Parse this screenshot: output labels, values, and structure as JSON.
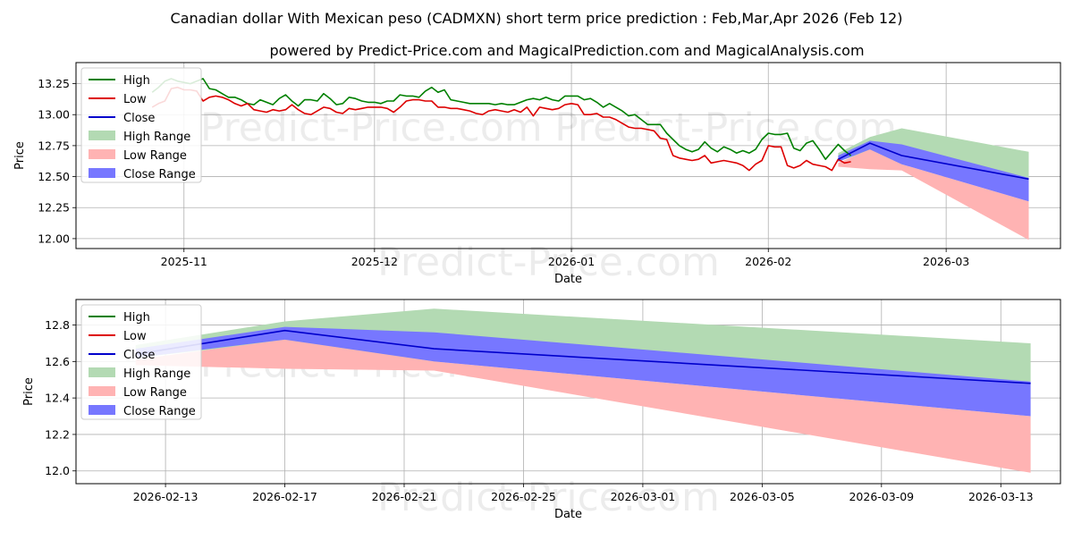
{
  "title": "Canadian dollar With Mexican peso (CADMXN) short term price prediction : Feb,Mar,Apr 2026 (Feb 12)",
  "subtitle": "powered by Predict-Price.com and MagicalPrediction.com and MagicalAnalysis.com",
  "watermark": "Predict-Price.com",
  "colors": {
    "high": "#008000",
    "low": "#dd0000",
    "close": "#0000cc",
    "high_range": "#b3dab3",
    "low_range": "#ffb3b3",
    "close_range": "#7777ff"
  },
  "legend": [
    "High",
    "Low",
    "Close",
    "High Range",
    "Low Range",
    "Close Range"
  ],
  "chart_data": [
    {
      "type": "line",
      "panel": "overview",
      "xlabel": "Date",
      "ylabel": "Price",
      "xlim": [
        "2025-10-15",
        "2026-03-19"
      ],
      "ylim": [
        11.92,
        13.42
      ],
      "xticks": [
        "2025-11-01",
        "2025-12-01",
        "2026-01-01",
        "2026-02-01",
        "2026-03-01"
      ],
      "xtick_labels": [
        "2025-11",
        "2025-12",
        "2026-01",
        "2026-02",
        "2026-03"
      ],
      "yticks": [
        12.0,
        12.25,
        12.5,
        12.75,
        13.0,
        13.25
      ],
      "ytick_labels": [
        "12.00",
        "12.25",
        "12.50",
        "12.75",
        "13.00",
        "13.25"
      ],
      "history_high": [
        [
          "2025-10-27",
          13.18
        ],
        [
          "2025-10-28",
          13.22
        ],
        [
          "2025-10-29",
          13.27
        ],
        [
          "2025-10-30",
          13.29
        ],
        [
          "2025-10-31",
          13.27
        ],
        [
          "2025-11-02",
          13.25
        ],
        [
          "2025-11-03",
          13.27
        ],
        [
          "2025-11-04",
          13.29
        ],
        [
          "2025-11-05",
          13.21
        ],
        [
          "2025-11-06",
          13.2
        ],
        [
          "2025-11-07",
          13.17
        ],
        [
          "2025-11-08",
          13.14
        ],
        [
          "2025-11-09",
          13.14
        ],
        [
          "2025-11-10",
          13.12
        ],
        [
          "2025-11-11",
          13.09
        ],
        [
          "2025-11-12",
          13.08
        ],
        [
          "2025-11-13",
          13.12
        ],
        [
          "2025-11-14",
          13.1
        ],
        [
          "2025-11-15",
          13.08
        ],
        [
          "2025-11-16",
          13.13
        ],
        [
          "2025-11-17",
          13.16
        ],
        [
          "2025-11-18",
          13.11
        ],
        [
          "2025-11-19",
          13.07
        ],
        [
          "2025-11-20",
          13.12
        ],
        [
          "2025-11-21",
          13.12
        ],
        [
          "2025-11-22",
          13.11
        ],
        [
          "2025-11-23",
          13.17
        ],
        [
          "2025-11-24",
          13.13
        ],
        [
          "2025-11-25",
          13.08
        ],
        [
          "2025-11-26",
          13.09
        ],
        [
          "2025-11-27",
          13.14
        ],
        [
          "2025-11-28",
          13.13
        ],
        [
          "2025-11-29",
          13.11
        ],
        [
          "2025-11-30",
          13.1
        ],
        [
          "2025-12-01",
          13.1
        ],
        [
          "2025-12-02",
          13.09
        ],
        [
          "2025-12-03",
          13.11
        ],
        [
          "2025-12-04",
          13.11
        ],
        [
          "2025-12-05",
          13.16
        ],
        [
          "2025-12-06",
          13.15
        ],
        [
          "2025-12-07",
          13.15
        ],
        [
          "2025-12-08",
          13.14
        ],
        [
          "2025-12-09",
          13.19
        ],
        [
          "2025-12-10",
          13.22
        ],
        [
          "2025-12-11",
          13.18
        ],
        [
          "2025-12-12",
          13.2
        ],
        [
          "2025-12-13",
          13.12
        ],
        [
          "2025-12-14",
          13.11
        ],
        [
          "2025-12-15",
          13.1
        ],
        [
          "2025-12-16",
          13.09
        ],
        [
          "2025-12-17",
          13.09
        ],
        [
          "2025-12-18",
          13.09
        ],
        [
          "2025-12-19",
          13.09
        ],
        [
          "2025-12-20",
          13.08
        ],
        [
          "2025-12-21",
          13.09
        ],
        [
          "2025-12-22",
          13.08
        ],
        [
          "2025-12-23",
          13.08
        ],
        [
          "2025-12-24",
          13.1
        ],
        [
          "2025-12-25",
          13.12
        ],
        [
          "2025-12-26",
          13.13
        ],
        [
          "2025-12-27",
          13.12
        ],
        [
          "2025-12-28",
          13.14
        ],
        [
          "2025-12-29",
          13.12
        ],
        [
          "2025-12-30",
          13.11
        ],
        [
          "2025-12-31",
          13.15
        ],
        [
          "2026-01-01",
          13.15
        ],
        [
          "2026-01-02",
          13.15
        ],
        [
          "2026-01-03",
          13.12
        ],
        [
          "2026-01-04",
          13.13
        ],
        [
          "2026-01-05",
          13.1
        ],
        [
          "2026-01-06",
          13.06
        ],
        [
          "2026-01-07",
          13.09
        ],
        [
          "2026-01-08",
          13.06
        ],
        [
          "2026-01-09",
          13.03
        ],
        [
          "2026-01-10",
          12.99
        ],
        [
          "2026-01-11",
          13.0
        ],
        [
          "2026-01-12",
          12.96
        ],
        [
          "2026-01-13",
          12.92
        ],
        [
          "2026-01-14",
          12.92
        ],
        [
          "2026-01-15",
          12.92
        ],
        [
          "2026-01-16",
          12.85
        ],
        [
          "2026-01-17",
          12.8
        ],
        [
          "2026-01-18",
          12.75
        ],
        [
          "2026-01-19",
          12.72
        ],
        [
          "2026-01-20",
          12.7
        ],
        [
          "2026-01-21",
          12.72
        ],
        [
          "2026-01-22",
          12.78
        ],
        [
          "2026-01-23",
          12.73
        ],
        [
          "2026-01-24",
          12.7
        ],
        [
          "2026-01-25",
          12.74
        ],
        [
          "2026-01-26",
          12.72
        ],
        [
          "2026-01-27",
          12.69
        ],
        [
          "2026-01-28",
          12.71
        ],
        [
          "2026-01-29",
          12.69
        ],
        [
          "2026-01-30",
          12.72
        ],
        [
          "2026-01-31",
          12.8
        ],
        [
          "2026-02-01",
          12.85
        ],
        [
          "2026-02-02",
          12.84
        ],
        [
          "2026-02-03",
          12.84
        ],
        [
          "2026-02-04",
          12.85
        ],
        [
          "2026-02-05",
          12.73
        ],
        [
          "2026-02-06",
          12.71
        ],
        [
          "2026-02-07",
          12.77
        ],
        [
          "2026-02-08",
          12.79
        ],
        [
          "2026-02-09",
          12.72
        ],
        [
          "2026-02-10",
          12.64
        ],
        [
          "2026-02-11",
          12.7
        ],
        [
          "2026-02-12",
          12.76
        ],
        [
          "2026-02-13",
          12.71
        ],
        [
          "2026-02-14",
          12.67
        ]
      ],
      "history_low": [
        [
          "2025-10-27",
          13.06
        ],
        [
          "2025-10-28",
          13.09
        ],
        [
          "2025-10-29",
          13.11
        ],
        [
          "2025-10-30",
          13.21
        ],
        [
          "2025-10-31",
          13.22
        ],
        [
          "2025-11-01",
          13.2
        ],
        [
          "2025-11-02",
          13.2
        ],
        [
          "2025-11-03",
          13.19
        ],
        [
          "2025-11-04",
          13.11
        ],
        [
          "2025-11-05",
          13.14
        ],
        [
          "2025-11-06",
          13.15
        ],
        [
          "2025-11-07",
          13.14
        ],
        [
          "2025-11-08",
          13.12
        ],
        [
          "2025-11-09",
          13.09
        ],
        [
          "2025-11-10",
          13.07
        ],
        [
          "2025-11-11",
          13.09
        ],
        [
          "2025-11-12",
          13.04
        ],
        [
          "2025-11-13",
          13.03
        ],
        [
          "2025-11-14",
          13.02
        ],
        [
          "2025-11-15",
          13.04
        ],
        [
          "2025-11-16",
          13.03
        ],
        [
          "2025-11-17",
          13.04
        ],
        [
          "2025-11-18",
          13.08
        ],
        [
          "2025-11-19",
          13.04
        ],
        [
          "2025-11-20",
          13.01
        ],
        [
          "2025-11-21",
          13.0
        ],
        [
          "2025-11-22",
          13.03
        ],
        [
          "2025-11-23",
          13.06
        ],
        [
          "2025-11-24",
          13.05
        ],
        [
          "2025-11-25",
          13.02
        ],
        [
          "2025-11-26",
          13.01
        ],
        [
          "2025-11-27",
          13.05
        ],
        [
          "2025-11-28",
          13.04
        ],
        [
          "2025-11-29",
          13.05
        ],
        [
          "2025-11-30",
          13.06
        ],
        [
          "2025-12-01",
          13.06
        ],
        [
          "2025-12-02",
          13.06
        ],
        [
          "2025-12-03",
          13.05
        ],
        [
          "2025-12-04",
          13.02
        ],
        [
          "2025-12-05",
          13.06
        ],
        [
          "2025-12-06",
          13.11
        ],
        [
          "2025-12-07",
          13.12
        ],
        [
          "2025-12-08",
          13.12
        ],
        [
          "2025-12-09",
          13.11
        ],
        [
          "2025-12-10",
          13.11
        ],
        [
          "2025-12-11",
          13.06
        ],
        [
          "2025-12-12",
          13.06
        ],
        [
          "2025-12-13",
          13.05
        ],
        [
          "2025-12-14",
          13.05
        ],
        [
          "2025-12-15",
          13.04
        ],
        [
          "2025-12-16",
          13.03
        ],
        [
          "2025-12-17",
          13.01
        ],
        [
          "2025-12-18",
          13.0
        ],
        [
          "2025-12-19",
          13.03
        ],
        [
          "2025-12-20",
          13.04
        ],
        [
          "2025-12-21",
          13.03
        ],
        [
          "2025-12-22",
          13.02
        ],
        [
          "2025-12-23",
          13.04
        ],
        [
          "2025-12-24",
          13.02
        ],
        [
          "2025-12-25",
          13.06
        ],
        [
          "2025-12-26",
          12.99
        ],
        [
          "2025-12-27",
          13.06
        ],
        [
          "2025-12-28",
          13.05
        ],
        [
          "2025-12-29",
          13.04
        ],
        [
          "2025-12-30",
          13.05
        ],
        [
          "2025-12-31",
          13.08
        ],
        [
          "2026-01-01",
          13.09
        ],
        [
          "2026-01-02",
          13.08
        ],
        [
          "2026-01-03",
          13.0
        ],
        [
          "2026-01-04",
          13.0
        ],
        [
          "2026-01-05",
          13.01
        ],
        [
          "2026-01-06",
          12.98
        ],
        [
          "2026-01-07",
          12.98
        ],
        [
          "2026-01-08",
          12.96
        ],
        [
          "2026-01-09",
          12.93
        ],
        [
          "2026-01-10",
          12.9
        ],
        [
          "2026-01-11",
          12.89
        ],
        [
          "2026-01-12",
          12.89
        ],
        [
          "2026-01-13",
          12.88
        ],
        [
          "2026-01-14",
          12.87
        ],
        [
          "2026-01-15",
          12.81
        ],
        [
          "2026-01-16",
          12.8
        ],
        [
          "2026-01-17",
          12.67
        ],
        [
          "2026-01-18",
          12.65
        ],
        [
          "2026-01-19",
          12.64
        ],
        [
          "2026-01-20",
          12.63
        ],
        [
          "2026-01-21",
          12.64
        ],
        [
          "2026-01-22",
          12.67
        ],
        [
          "2026-01-23",
          12.61
        ],
        [
          "2026-01-24",
          12.62
        ],
        [
          "2026-01-25",
          12.63
        ],
        [
          "2026-01-26",
          12.62
        ],
        [
          "2026-01-27",
          12.61
        ],
        [
          "2026-01-28",
          12.59
        ],
        [
          "2026-01-29",
          12.55
        ],
        [
          "2026-01-30",
          12.6
        ],
        [
          "2026-01-31",
          12.63
        ],
        [
          "2026-02-01",
          12.75
        ],
        [
          "2026-02-02",
          12.74
        ],
        [
          "2026-02-03",
          12.74
        ],
        [
          "2026-02-04",
          12.59
        ],
        [
          "2026-02-05",
          12.57
        ],
        [
          "2026-02-06",
          12.59
        ],
        [
          "2026-02-07",
          12.63
        ],
        [
          "2026-02-08",
          12.6
        ],
        [
          "2026-02-09",
          12.59
        ],
        [
          "2026-02-10",
          12.58
        ],
        [
          "2026-02-11",
          12.55
        ],
        [
          "2026-02-12",
          12.64
        ],
        [
          "2026-02-13",
          12.61
        ],
        [
          "2026-02-14",
          12.62
        ]
      ],
      "forecast_x": [
        "2026-02-12",
        "2026-02-17",
        "2026-02-22",
        "2026-03-14"
      ],
      "high_range": {
        "upper": [
          12.69,
          12.82,
          12.89,
          12.7
        ],
        "lower": [
          12.62,
          12.71,
          12.6,
          12.49
        ]
      },
      "low_range": {
        "upper": [
          12.61,
          12.72,
          12.6,
          12.3
        ],
        "lower": [
          12.58,
          12.56,
          12.55,
          11.99
        ]
      },
      "close_range": {
        "upper": [
          12.67,
          12.79,
          12.76,
          12.49
        ],
        "lower": [
          12.62,
          12.72,
          12.6,
          12.3
        ]
      },
      "close_forecast": [
        12.64,
        12.77,
        12.67,
        12.48
      ]
    },
    {
      "type": "line",
      "panel": "forecast-detail",
      "xlabel": "Date",
      "ylabel": "Price",
      "xlim": [
        "2026-02-10",
        "2026-03-15"
      ],
      "ylim": [
        11.93,
        12.94
      ],
      "xticks": [
        "2026-02-13",
        "2026-02-17",
        "2026-02-21",
        "2026-02-25",
        "2026-03-01",
        "2026-03-05",
        "2026-03-09",
        "2026-03-13"
      ],
      "xtick_labels": [
        "2026-02-13",
        "2026-02-17",
        "2026-02-21",
        "2026-02-25",
        "2026-03-01",
        "2026-03-05",
        "2026-03-09",
        "2026-03-13"
      ],
      "yticks": [
        12.0,
        12.2,
        12.4,
        12.6,
        12.8
      ],
      "ytick_labels": [
        "12.0",
        "12.2",
        "12.4",
        "12.6",
        "12.8"
      ],
      "forecast_x": [
        "2026-02-12",
        "2026-02-17",
        "2026-02-22",
        "2026-03-14"
      ],
      "high_range": {
        "upper": [
          12.69,
          12.82,
          12.89,
          12.7
        ],
        "lower": [
          12.62,
          12.71,
          12.6,
          12.49
        ]
      },
      "low_range": {
        "upper": [
          12.61,
          12.72,
          12.6,
          12.3
        ],
        "lower": [
          12.58,
          12.56,
          12.55,
          11.99
        ]
      },
      "close_range": {
        "upper": [
          12.67,
          12.79,
          12.76,
          12.49
        ],
        "lower": [
          12.62,
          12.72,
          12.6,
          12.3
        ]
      },
      "close_forecast": [
        12.64,
        12.77,
        12.67,
        12.48
      ]
    }
  ]
}
